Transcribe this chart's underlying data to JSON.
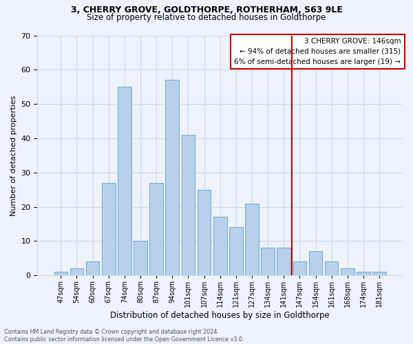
{
  "title": "3, CHERRY GROVE, GOLDTHORPE, ROTHERHAM, S63 9LE",
  "subtitle": "Size of property relative to detached houses in Goldthorpe",
  "xlabel": "Distribution of detached houses by size in Goldthorpe",
  "ylabel": "Number of detached properties",
  "bar_labels": [
    "47sqm",
    "54sqm",
    "60sqm",
    "67sqm",
    "74sqm",
    "80sqm",
    "87sqm",
    "94sqm",
    "101sqm",
    "107sqm",
    "114sqm",
    "121sqm",
    "127sqm",
    "134sqm",
    "141sqm",
    "147sqm",
    "154sqm",
    "161sqm",
    "168sqm",
    "174sqm",
    "181sqm"
  ],
  "bar_values": [
    1,
    2,
    4,
    27,
    55,
    10,
    27,
    57,
    41,
    25,
    17,
    14,
    21,
    8,
    8,
    4,
    7,
    4,
    2,
    1,
    1
  ],
  "bar_color": "#b8d0eb",
  "bar_edge_color": "#6aacd4",
  "property_label": "3 CHERRY GROVE: 146sqm",
  "annotation_line1": "← 94% of detached houses are smaller (315)",
  "annotation_line2": "6% of semi-detached houses are larger (19) →",
  "vline_color": "#cc0000",
  "vline_pos": 14.5,
  "footer1": "Contains HM Land Registry data © Crown copyright and database right 2024.",
  "footer2": "Contains public sector information licensed under the Open Government Licence v3.0.",
  "ylim": [
    0,
    70
  ],
  "yticks": [
    0,
    10,
    20,
    30,
    40,
    50,
    60,
    70
  ],
  "grid_color": "#d0d8e8",
  "background_color": "#eef2fa"
}
